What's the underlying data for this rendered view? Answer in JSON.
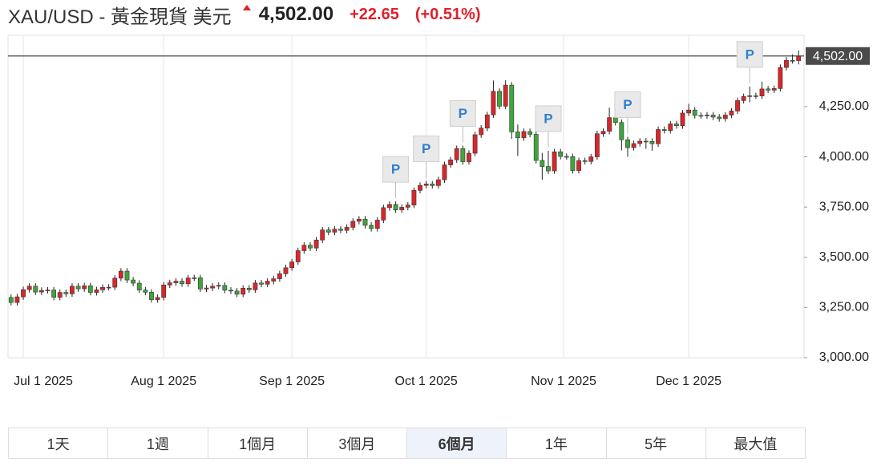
{
  "header": {
    "symbol": "XAU/USD - 黃金現貨 美元",
    "price": "4,502.00",
    "change": "+22.65",
    "change_pct": "(+0.51%)"
  },
  "chart_data": {
    "type": "candlestick",
    "categories": [
      "2025-06-27",
      "2025-06-30",
      "2025-07-01",
      "2025-07-02",
      "2025-07-03",
      "2025-07-04",
      "2025-07-07",
      "2025-07-08",
      "2025-07-09",
      "2025-07-10",
      "2025-07-11",
      "2025-07-14",
      "2025-07-15",
      "2025-07-16",
      "2025-07-17",
      "2025-07-18",
      "2025-07-21",
      "2025-07-22",
      "2025-07-23",
      "2025-07-24",
      "2025-07-25",
      "2025-07-28",
      "2025-07-29",
      "2025-07-30",
      "2025-07-31",
      "2025-08-01",
      "2025-08-04",
      "2025-08-05",
      "2025-08-06",
      "2025-08-07",
      "2025-08-08",
      "2025-08-11",
      "2025-08-12",
      "2025-08-13",
      "2025-08-14",
      "2025-08-15",
      "2025-08-18",
      "2025-08-19",
      "2025-08-20",
      "2025-08-21",
      "2025-08-22",
      "2025-08-25",
      "2025-08-26",
      "2025-08-27",
      "2025-08-28",
      "2025-08-29",
      "2025-09-01",
      "2025-09-02",
      "2025-09-03",
      "2025-09-04",
      "2025-09-05",
      "2025-09-08",
      "2025-09-09",
      "2025-09-10",
      "2025-09-11",
      "2025-09-12",
      "2025-09-15",
      "2025-09-16",
      "2025-09-17",
      "2025-09-18",
      "2025-09-19",
      "2025-09-22",
      "2025-09-23",
      "2025-09-24",
      "2025-09-25",
      "2025-09-26",
      "2025-09-29",
      "2025-09-30",
      "2025-10-01",
      "2025-10-02",
      "2025-10-03",
      "2025-10-06",
      "2025-10-07",
      "2025-10-08",
      "2025-10-09",
      "2025-10-10",
      "2025-10-13",
      "2025-10-14",
      "2025-10-15",
      "2025-10-16",
      "2025-10-17",
      "2025-10-20",
      "2025-10-21",
      "2025-10-22",
      "2025-10-23",
      "2025-10-24",
      "2025-10-27",
      "2025-10-28",
      "2025-10-29",
      "2025-10-30",
      "2025-10-31",
      "2025-11-03",
      "2025-11-04",
      "2025-11-05",
      "2025-11-06",
      "2025-11-07",
      "2025-11-10",
      "2025-11-11",
      "2025-11-12",
      "2025-11-13",
      "2025-11-14",
      "2025-11-17",
      "2025-11-18",
      "2025-11-19",
      "2025-11-20",
      "2025-11-21",
      "2025-11-24",
      "2025-11-25",
      "2025-11-26",
      "2025-11-27",
      "2025-11-28",
      "2025-12-01",
      "2025-12-02",
      "2025-12-03",
      "2025-12-04",
      "2025-12-05",
      "2025-12-08",
      "2025-12-09",
      "2025-12-10",
      "2025-12-11",
      "2025-12-12",
      "2025-12-15",
      "2025-12-16",
      "2025-12-17",
      "2025-12-18",
      "2025-12-19",
      "2025-12-22",
      "2025-12-23",
      "2025-12-24",
      "2025-12-26"
    ],
    "open": [
      3300,
      3275,
      3303,
      3339,
      3356,
      3327,
      3335,
      3337,
      3301,
      3325,
      3318,
      3356,
      3343,
      3358,
      3325,
      3338,
      3350,
      3351,
      3396,
      3431,
      3387,
      3371,
      3337,
      3326,
      3289,
      3300,
      3362,
      3373,
      3381,
      3368,
      3397,
      3398,
      3342,
      3347,
      3356,
      3360,
      3336,
      3332,
      3316,
      3346,
      3338,
      3372,
      3366,
      3381,
      3393,
      3418,
      3448,
      3477,
      3533,
      3560,
      3546,
      3586,
      3636,
      3625,
      3640,
      3634,
      3649,
      3679,
      3690,
      3659,
      3643,
      3685,
      3747,
      3763,
      3736,
      3749,
      3760,
      3833,
      3858,
      3865,
      3857,
      3886,
      3960,
      3985,
      4041,
      3976,
      4018,
      4110,
      4143,
      4209,
      4326,
      4252,
      4357,
      4124,
      4095,
      4126,
      4112,
      3982,
      3952,
      3930,
      4025,
      4002,
      4001,
      3932,
      3981,
      3977,
      4000,
      4115,
      4127,
      4195,
      4171,
      4085,
      4046,
      4066,
      4078,
      4077,
      4065,
      4136,
      4131,
      4164,
      4155,
      4218,
      4233,
      4206,
      4205,
      4208,
      4198,
      4190,
      4208,
      4228,
      4280,
      4300,
      4304,
      4303,
      4338,
      4332,
      4340,
      4445,
      4480,
      4479
    ],
    "high": [
      3315,
      3318,
      3354,
      3371,
      3371,
      3350,
      3352,
      3352,
      3340,
      3340,
      3371,
      3371,
      3373,
      3373,
      3353,
      3365,
      3366,
      3411,
      3446,
      3446,
      3402,
      3386,
      3352,
      3341,
      3315,
      3377,
      3388,
      3396,
      3396,
      3412,
      3413,
      3413,
      3362,
      3371,
      3375,
      3375,
      3351,
      3347,
      3361,
      3361,
      3387,
      3387,
      3396,
      3408,
      3433,
      3463,
      3492,
      3548,
      3575,
      3575,
      3601,
      3651,
      3651,
      3655,
      3655,
      3664,
      3694,
      3705,
      3705,
      3674,
      3700,
      3762,
      3778,
      3778,
      3764,
      3775,
      3848,
      3873,
      3880,
      3880,
      3901,
      3975,
      4000,
      4056,
      4056,
      4033,
      4125,
      4158,
      4224,
      4380,
      4341,
      4381,
      4372,
      4161,
      4141,
      4141,
      4127,
      4020,
      4030,
      4040,
      4040,
      4017,
      4016,
      3996,
      3996,
      4015,
      4130,
      4142,
      4245,
      4210,
      4186,
      4100,
      4081,
      4093,
      4093,
      4092,
      4151,
      4151,
      4179,
      4179,
      4233,
      4264,
      4248,
      4221,
      4223,
      4223,
      4213,
      4223,
      4243,
      4295,
      4315,
      4350,
      4319,
      4374,
      4353,
      4355,
      4460,
      4497,
      4510,
      4530
    ],
    "low": [
      3260,
      3260,
      3288,
      3324,
      3312,
      3312,
      3320,
      3286,
      3286,
      3303,
      3303,
      3328,
      3328,
      3310,
      3310,
      3323,
      3335,
      3336,
      3381,
      3372,
      3356,
      3322,
      3311,
      3274,
      3274,
      3285,
      3347,
      3358,
      3353,
      3353,
      3382,
      3327,
      3327,
      3332,
      3341,
      3321,
      3317,
      3301,
      3301,
      3323,
      3323,
      3351,
      3351,
      3366,
      3378,
      3403,
      3433,
      3462,
      3518,
      3531,
      3531,
      3571,
      3610,
      3610,
      3619,
      3619,
      3634,
      3664,
      3644,
      3628,
      3628,
      3670,
      3732,
      3721,
      3721,
      3734,
      3745,
      3818,
      3843,
      3842,
      3842,
      3871,
      3945,
      3970,
      3961,
      3961,
      4003,
      4095,
      4128,
      4194,
      4237,
      4237,
      4090,
      4004,
      4080,
      4097,
      3967,
      3886,
      3915,
      3915,
      3987,
      3986,
      3917,
      3917,
      3962,
      3962,
      3985,
      4100,
      4112,
      4156,
      4032,
      4000,
      4031,
      4051,
      4040,
      4030,
      4050,
      4116,
      4116,
      4140,
      4140,
      4203,
      4191,
      4190,
      4190,
      4183,
      4175,
      4175,
      4193,
      4213,
      4265,
      4271,
      4288,
      4288,
      4317,
      4317,
      4325,
      4430,
      4464,
      4460
    ],
    "close": [
      3275,
      3303,
      3339,
      3356,
      3327,
      3335,
      3337,
      3301,
      3325,
      3318,
      3356,
      3343,
      3358,
      3325,
      3338,
      3350,
      3351,
      3396,
      3431,
      3387,
      3371,
      3337,
      3326,
      3289,
      3300,
      3362,
      3373,
      3381,
      3368,
      3397,
      3398,
      3342,
      3347,
      3356,
      3360,
      3336,
      3332,
      3316,
      3346,
      3338,
      3372,
      3366,
      3381,
      3393,
      3418,
      3448,
      3477,
      3533,
      3560,
      3546,
      3586,
      3636,
      3625,
      3640,
      3634,
      3649,
      3679,
      3690,
      3659,
      3643,
      3685,
      3747,
      3763,
      3736,
      3749,
      3760,
      3833,
      3858,
      3865,
      3857,
      3886,
      3960,
      3985,
      4041,
      3976,
      4018,
      4110,
      4143,
      4209,
      4326,
      4252,
      4357,
      4124,
      4095,
      4126,
      4112,
      3982,
      3952,
      3930,
      4025,
      4002,
      4001,
      3932,
      3981,
      3977,
      4000,
      4115,
      4127,
      4195,
      4171,
      4085,
      4046,
      4066,
      4078,
      4077,
      4065,
      4136,
      4131,
      4164,
      4155,
      4218,
      4233,
      4206,
      4205,
      4208,
      4198,
      4190,
      4208,
      4228,
      4280,
      4300,
      4304,
      4303,
      4338,
      4332,
      4340,
      4445,
      4480,
      4479,
      4502
    ],
    "up_color": "#d9262b",
    "down_color": "#3ea53a",
    "ylim": [
      3000,
      4605
    ],
    "yticks": [
      {
        "value": 3000,
        "label": "3,000.00"
      },
      {
        "value": 3250,
        "label": "3,250.00"
      },
      {
        "value": 3500,
        "label": "3,500.00"
      },
      {
        "value": 3750,
        "label": "3,750.00"
      },
      {
        "value": 4000,
        "label": "4,000.00"
      },
      {
        "value": 4250,
        "label": "4,250.00"
      }
    ],
    "xticks": [
      {
        "value": "2025-07-01",
        "label": "Jul 1 2025"
      },
      {
        "value": "2025-08-01",
        "label": "Aug 1 2025"
      },
      {
        "value": "2025-09-01",
        "label": "Sep 1 2025"
      },
      {
        "value": "2025-10-01",
        "label": "Oct 1 2025"
      },
      {
        "value": "2025-11-01",
        "label": "Nov 1 2025"
      },
      {
        "value": "2025-12-01",
        "label": "Dec 1 2025"
      }
    ],
    "xgrid": true,
    "last_price": {
      "value": 4502,
      "label": "4,502.00"
    },
    "annotations": [
      {
        "x": "2025-09-24",
        "label": "P"
      },
      {
        "x": "2025-10-01",
        "label": "P"
      },
      {
        "x": "2025-10-09",
        "label": "P"
      },
      {
        "x": "2025-10-29",
        "label": "P"
      },
      {
        "x": "2025-11-17",
        "label": "P"
      },
      {
        "x": "2025-12-15",
        "label": "P"
      }
    ]
  },
  "tabs": {
    "items": [
      "1天",
      "1週",
      "1個月",
      "3個月",
      "6個月",
      "1年",
      "5年",
      "最大值"
    ],
    "active": 4
  }
}
